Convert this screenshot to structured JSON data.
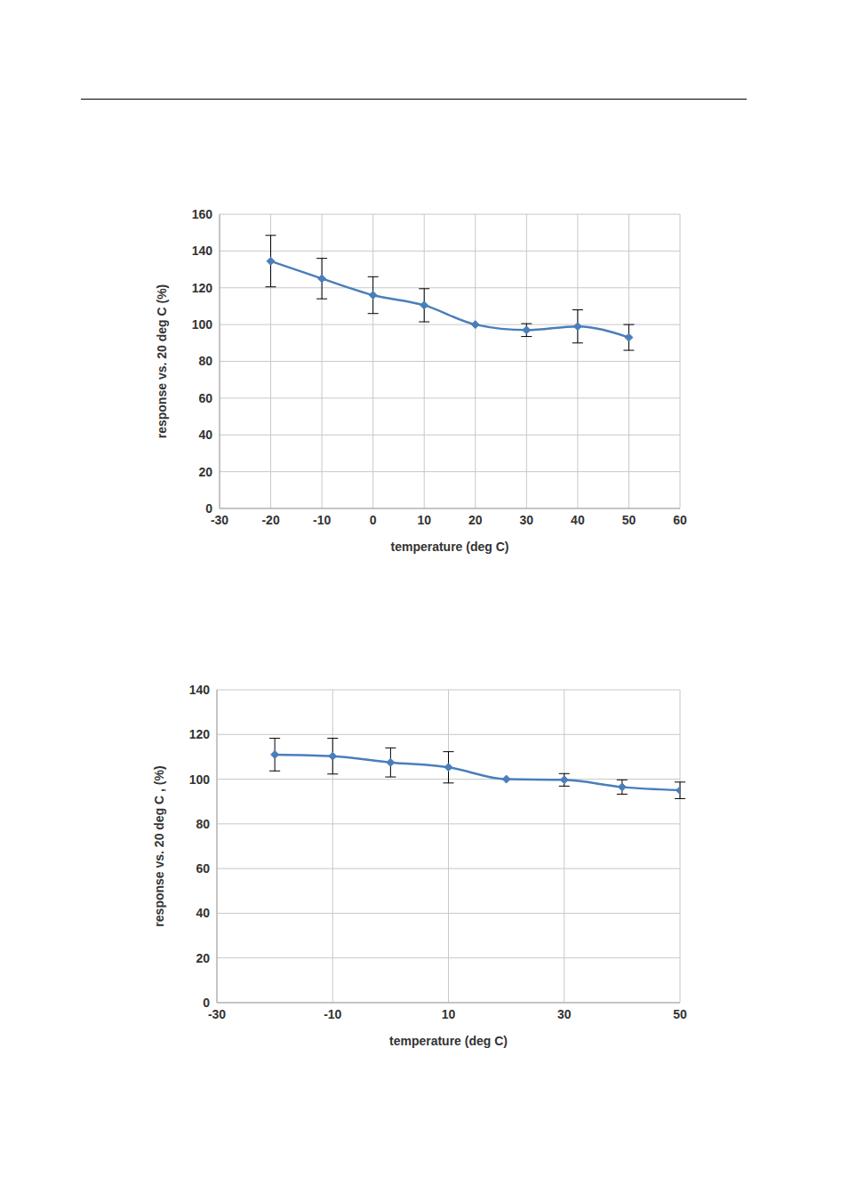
{
  "chart_data": [
    {
      "type": "line",
      "x_label": "temperature (deg C)",
      "y_label": "response vs. 20 deg C (%)",
      "x": [
        -20,
        -10,
        0,
        10,
        20,
        30,
        40,
        50
      ],
      "series": [
        {
          "color": "#4a7ebb",
          "marker": "diamond",
          "line_style": "solid",
          "values": [
            134.5,
            125,
            116,
            110.5,
            100,
            97,
            99,
            93
          ],
          "errors": [
            14,
            11,
            10,
            9,
            0,
            3.5,
            9,
            7
          ]
        }
      ],
      "xlim": [
        -30,
        60
      ],
      "xticks": [
        -30,
        -20,
        -10,
        0,
        10,
        20,
        30,
        40,
        50,
        60
      ],
      "ylim": [
        0,
        160
      ],
      "yticks": [
        0,
        20,
        40,
        60,
        80,
        100,
        120,
        140,
        160
      ],
      "grid": true
    },
    {
      "type": "line",
      "x_label": "temperature (deg C)",
      "y_label": "response vs. 20 deg C , (%)",
      "x": [
        -20,
        -10,
        0,
        10,
        20,
        30,
        40,
        50
      ],
      "series": [
        {
          "color": "#4a7ebb",
          "marker": "diamond",
          "line_style": "solid",
          "values": [
            111,
            110.3,
            107.5,
            105.3,
            100,
            99.7,
            96.5,
            95
          ],
          "errors": [
            7.3,
            8,
            6.5,
            7,
            0,
            2.8,
            3.2,
            3.7
          ]
        }
      ],
      "xlim": [
        -30,
        50
      ],
      "xticks": [
        -30,
        -10,
        10,
        30,
        50
      ],
      "ylim": [
        0,
        140
      ],
      "yticks": [
        0,
        20,
        40,
        60,
        80,
        100,
        120,
        140
      ],
      "grid": true
    }
  ]
}
